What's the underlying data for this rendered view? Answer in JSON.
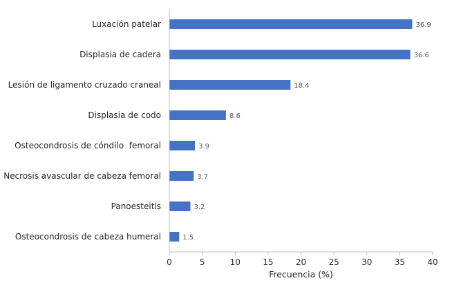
{
  "chart_data": {
    "type": "bar",
    "orientation": "horizontal",
    "categories": [
      "Luxación patelar",
      "Displasia de cadera",
      "Lesión de ligamento cruzado craneal",
      "Displasia de codo",
      "Osteocondrosis de cóndilo  femoral",
      "Necrosis avascular de cabeza femoral",
      "Panoesteitis",
      "Osteocondrosis de cabeza humeral"
    ],
    "values": [
      36.9,
      36.6,
      18.4,
      8.6,
      3.9,
      3.7,
      3.2,
      1.5
    ],
    "data_labels": [
      "36.9",
      "36.6",
      "18.4",
      "8.6",
      "3.9",
      "3.7",
      "3.2",
      "1.5"
    ],
    "xlabel": "Frecuencia (%)",
    "ylabel": "",
    "xlim": [
      0,
      40
    ],
    "x_ticks": [
      "0",
      "5",
      "10",
      "15",
      "20",
      "25",
      "30",
      "35",
      "40"
    ],
    "grid": false,
    "legend": "none",
    "bar_color": "#4472C4"
  }
}
